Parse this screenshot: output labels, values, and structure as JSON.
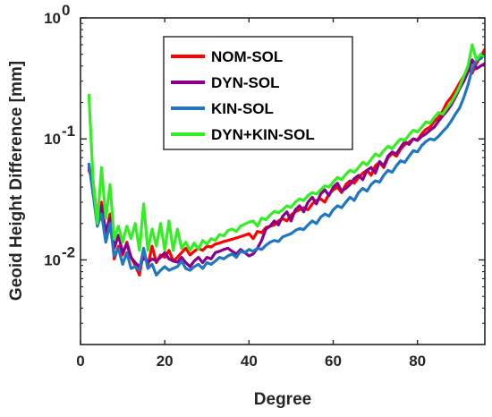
{
  "chart_data": {
    "type": "line",
    "title": "",
    "xlabel": "Degree",
    "ylabel": "Geoid Height Difference [mm]",
    "xlim": [
      0,
      96
    ],
    "ylim": [
      0.002,
      1
    ],
    "y_scale": "log",
    "x_ticks": [
      0,
      20,
      40,
      60,
      80
    ],
    "x_tick_labels": [
      "0",
      "20",
      "40",
      "60",
      "80"
    ],
    "y_ticks": [
      0.01,
      0.1,
      1
    ],
    "y_tick_labels": [
      {
        "base": "10",
        "exp": "-2"
      },
      {
        "base": "10",
        "exp": "-1"
      },
      {
        "base": "10",
        "exp": "0"
      }
    ],
    "grid": false,
    "legend_position": "top-center",
    "x": [
      2,
      3,
      4,
      5,
      6,
      7,
      8,
      9,
      10,
      11,
      12,
      13,
      14,
      15,
      16,
      17,
      18,
      19,
      20,
      21,
      22,
      23,
      24,
      25,
      26,
      27,
      28,
      29,
      30,
      31,
      32,
      33,
      34,
      35,
      36,
      37,
      38,
      39,
      40,
      41,
      42,
      43,
      44,
      45,
      46,
      47,
      48,
      49,
      50,
      51,
      52,
      53,
      54,
      55,
      56,
      57,
      58,
      59,
      60,
      61,
      62,
      63,
      64,
      65,
      66,
      67,
      68,
      69,
      70,
      71,
      72,
      73,
      74,
      75,
      76,
      77,
      78,
      79,
      80,
      81,
      82,
      83,
      84,
      85,
      86,
      87,
      88,
      89,
      90,
      91,
      92,
      93,
      94,
      95,
      96
    ],
    "series": [
      {
        "name": "NOM-SOL",
        "color": "#ff0000",
        "values": [
          0.055,
          0.045,
          0.021,
          0.03,
          0.016,
          0.024,
          0.0102,
          0.013,
          0.011,
          0.014,
          0.0105,
          0.009,
          0.0075,
          0.012,
          0.009,
          0.013,
          0.0095,
          0.011,
          0.0105,
          0.012,
          0.0098,
          0.0105,
          0.0115,
          0.0125,
          0.011,
          0.0118,
          0.0125,
          0.012,
          0.013,
          0.0128,
          0.0135,
          0.0138,
          0.0142,
          0.0145,
          0.0148,
          0.0152,
          0.0156,
          0.016,
          0.0165,
          0.015,
          0.0172,
          0.0168,
          0.0185,
          0.019,
          0.0195,
          0.021,
          0.022,
          0.021,
          0.0235,
          0.025,
          0.026,
          0.027,
          0.026,
          0.029,
          0.031,
          0.032,
          0.03,
          0.035,
          0.038,
          0.04,
          0.036,
          0.042,
          0.045,
          0.043,
          0.048,
          0.052,
          0.055,
          0.05,
          0.06,
          0.064,
          0.058,
          0.07,
          0.076,
          0.072,
          0.082,
          0.09,
          0.094,
          0.1,
          0.098,
          0.11,
          0.12,
          0.125,
          0.14,
          0.15,
          0.17,
          0.2,
          0.22,
          0.25,
          0.29,
          0.33,
          0.38,
          0.35,
          0.42,
          0.48,
          0.55
        ]
      },
      {
        "name": "DYN-SOL",
        "color": "#8b008b",
        "values": [
          0.058,
          0.04,
          0.02,
          0.028,
          0.017,
          0.022,
          0.0125,
          0.016,
          0.0115,
          0.0135,
          0.0105,
          0.0095,
          0.0088,
          0.0105,
          0.0095,
          0.0102,
          0.0098,
          0.0105,
          0.0115,
          0.0102,
          0.0098,
          0.0096,
          0.0105,
          0.0095,
          0.0088,
          0.0098,
          0.0105,
          0.0095,
          0.0105,
          0.0102,
          0.0115,
          0.0118,
          0.0122,
          0.0125,
          0.0118,
          0.0112,
          0.0122,
          0.0115,
          0.0108,
          0.0112,
          0.0125,
          0.0145,
          0.018,
          0.019,
          0.021,
          0.0195,
          0.023,
          0.025,
          0.021,
          0.026,
          0.028,
          0.025,
          0.03,
          0.033,
          0.029,
          0.035,
          0.038,
          0.034,
          0.04,
          0.043,
          0.037,
          0.039,
          0.042,
          0.047,
          0.05,
          0.046,
          0.055,
          0.058,
          0.052,
          0.065,
          0.06,
          0.072,
          0.078,
          0.075,
          0.085,
          0.095,
          0.09,
          0.1,
          0.097,
          0.105,
          0.11,
          0.118,
          0.125,
          0.14,
          0.155,
          0.17,
          0.19,
          0.22,
          0.26,
          0.3,
          0.36,
          0.45,
          0.38,
          0.4,
          0.42
        ]
      },
      {
        "name": "KIN-SOL",
        "color": "#1f77c4",
        "values": [
          0.062,
          0.035,
          0.019,
          0.024,
          0.014,
          0.02,
          0.0108,
          0.0125,
          0.0092,
          0.0115,
          0.0085,
          0.0088,
          0.0082,
          0.0125,
          0.0085,
          0.0092,
          0.0075,
          0.0082,
          0.0088,
          0.0082,
          0.0085,
          0.0088,
          0.0098,
          0.0085,
          0.0082,
          0.0088,
          0.0092,
          0.0085,
          0.0095,
          0.0092,
          0.0098,
          0.0105,
          0.0102,
          0.0108,
          0.0112,
          0.0105,
          0.0118,
          0.0115,
          0.0122,
          0.0118,
          0.0125,
          0.0122,
          0.0132,
          0.014,
          0.0145,
          0.0142,
          0.0155,
          0.016,
          0.0165,
          0.0175,
          0.0182,
          0.0178,
          0.0195,
          0.021,
          0.02,
          0.0225,
          0.024,
          0.023,
          0.026,
          0.028,
          0.027,
          0.03,
          0.033,
          0.031,
          0.036,
          0.039,
          0.037,
          0.042,
          0.045,
          0.044,
          0.05,
          0.055,
          0.053,
          0.06,
          0.066,
          0.064,
          0.072,
          0.08,
          0.078,
          0.088,
          0.095,
          0.1,
          0.098,
          0.105,
          0.115,
          0.125,
          0.14,
          0.16,
          0.18,
          0.22,
          0.28,
          0.38,
          0.45,
          0.46,
          0.5
        ]
      },
      {
        "name": "DYN+KIN-SOL",
        "color": "#33ee22",
        "values": [
          0.23,
          0.045,
          0.02,
          0.058,
          0.022,
          0.042,
          0.015,
          0.019,
          0.014,
          0.019,
          0.015,
          0.02,
          0.012,
          0.029,
          0.012,
          0.018,
          0.013,
          0.02,
          0.012,
          0.021,
          0.012,
          0.018,
          0.0125,
          0.014,
          0.012,
          0.0138,
          0.0122,
          0.0145,
          0.0135,
          0.015,
          0.0145,
          0.0162,
          0.0158,
          0.0175,
          0.018,
          0.0172,
          0.019,
          0.0198,
          0.0205,
          0.021,
          0.019,
          0.0222,
          0.0215,
          0.0235,
          0.0252,
          0.0245,
          0.026,
          0.028,
          0.0272,
          0.03,
          0.032,
          0.031,
          0.034,
          0.036,
          0.035,
          0.038,
          0.041,
          0.04,
          0.044,
          0.048,
          0.046,
          0.051,
          0.055,
          0.053,
          0.058,
          0.064,
          0.061,
          0.068,
          0.075,
          0.072,
          0.08,
          0.087,
          0.083,
          0.092,
          0.1,
          0.097,
          0.108,
          0.118,
          0.114,
          0.125,
          0.138,
          0.135,
          0.15,
          0.165,
          0.16,
          0.18,
          0.2,
          0.23,
          0.27,
          0.33,
          0.4,
          0.6,
          0.45,
          0.5,
          0.48
        ]
      }
    ]
  }
}
